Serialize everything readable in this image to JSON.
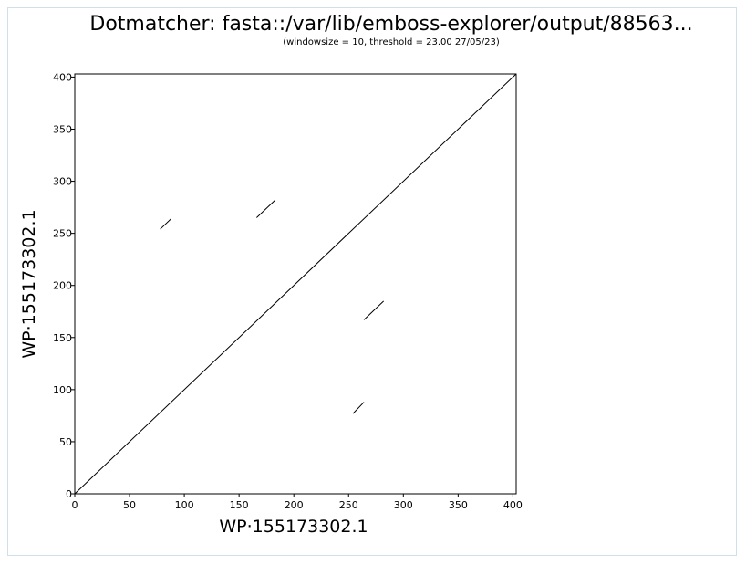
{
  "chart_data": {
    "type": "scatter",
    "title": "Dotmatcher: fasta::/var/lib/emboss-explorer/output/88563...",
    "subtitle": "(windowsize = 10, threshold = 23.00  27/05/23)",
    "xlabel": "WP·155173302.1",
    "ylabel": "WP·155173302.1",
    "xlim": [
      0,
      403
    ],
    "ylim": [
      0,
      403
    ],
    "x_ticks": [
      0,
      50,
      100,
      150,
      200,
      250,
      300,
      350,
      400
    ],
    "y_ticks": [
      0,
      50,
      100,
      150,
      200,
      250,
      300,
      350,
      400
    ],
    "grid": false,
    "segments": [
      {
        "x1": 0,
        "y1": 0,
        "x2": 403,
        "y2": 403
      },
      {
        "x1": 78,
        "y1": 254,
        "x2": 88,
        "y2": 264
      },
      {
        "x1": 166,
        "y1": 265,
        "x2": 183,
        "y2": 282
      },
      {
        "x1": 264,
        "y1": 167,
        "x2": 282,
        "y2": 185
      },
      {
        "x1": 254,
        "y1": 77,
        "x2": 264,
        "y2": 88
      }
    ]
  }
}
